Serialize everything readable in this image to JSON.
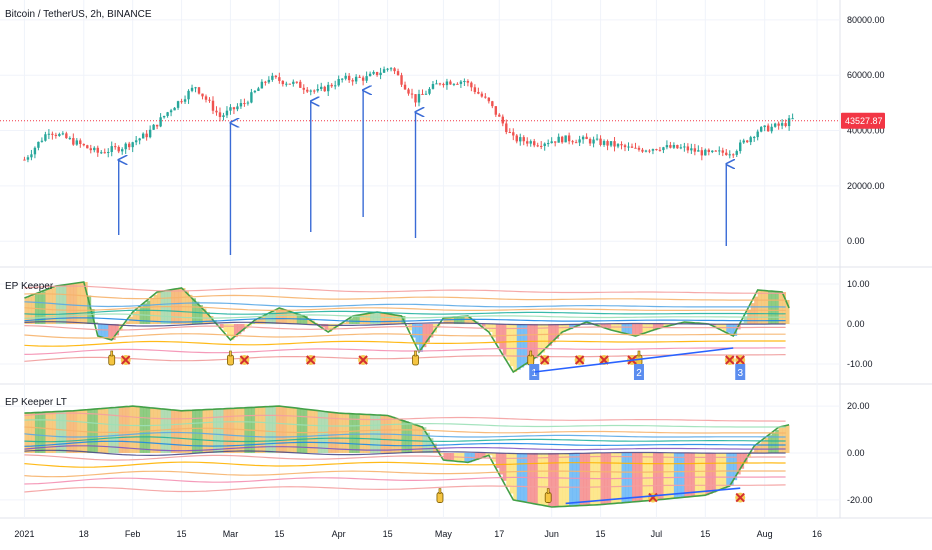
{
  "chart_data": [
    {
      "type": "candlestick",
      "title": "Bitcoin / TetherUS, 2h, BINANCE",
      "y_ticks": [
        "80000.00",
        "60000.00",
        "40000.00",
        "20000.00",
        "0.00"
      ],
      "y_tick_values": [
        80000,
        60000,
        40000,
        20000,
        0
      ],
      "ylim": [
        -7500,
        85000
      ],
      "last_price": 43527.87,
      "last_price_label": "43527.87",
      "price_colors": {
        "up": "#26a69a",
        "down": "#ef5350",
        "marker": "#f23645"
      },
      "series": [
        {
          "x": [
            "2021-01-01",
            "2021-01-08",
            "2021-01-15",
            "2021-01-22",
            "2021-01-29",
            "2021-02-05",
            "2021-02-12",
            "2021-02-19",
            "2021-02-26",
            "2021-03-05",
            "2021-03-12",
            "2021-03-19",
            "2021-03-26",
            "2021-04-02",
            "2021-04-09",
            "2021-04-16",
            "2021-04-23",
            "2021-04-30",
            "2021-05-07",
            "2021-05-14",
            "2021-05-21",
            "2021-05-28",
            "2021-06-04",
            "2021-06-11",
            "2021-06-18",
            "2021-06-25",
            "2021-07-02",
            "2021-07-09",
            "2021-07-16",
            "2021-07-23",
            "2021-07-30",
            "2021-08-06",
            "2021-08-09"
          ],
          "y": [
            29500,
            40000,
            36000,
            32000,
            34000,
            38500,
            48000,
            56000,
            45000,
            50000,
            59000,
            57000,
            54000,
            58500,
            59000,
            63000,
            51000,
            57500,
            58000,
            50000,
            37000,
            35500,
            37000,
            36500,
            35000,
            33000,
            34000,
            33500,
            31500,
            32500,
            40000,
            42000,
            44000
          ]
        }
      ],
      "annotations": {
        "arrow_dates": [
          "2021-01-28",
          "2021-03-01",
          "2021-03-24",
          "2021-04-08",
          "2021-04-23",
          "2021-07-21"
        ],
        "arrow_color": "#3a6bd6"
      }
    },
    {
      "type": "area",
      "title": "EP Keeper",
      "y_ticks": [
        "10.00",
        "0.00",
        "-10.00"
      ],
      "y_tick_values": [
        10,
        0,
        -10
      ],
      "ylim": [
        -14,
        13
      ],
      "series": [
        {
          "x": [
            "2021-01-01",
            "2021-01-10",
            "2021-01-18",
            "2021-01-22",
            "2021-01-26",
            "2021-02-01",
            "2021-02-08",
            "2021-02-15",
            "2021-02-22",
            "2021-03-01",
            "2021-03-08",
            "2021-03-15",
            "2021-03-22",
            "2021-03-29",
            "2021-04-05",
            "2021-04-12",
            "2021-04-19",
            "2021-04-24",
            "2021-05-01",
            "2021-05-08",
            "2021-05-14",
            "2021-05-21",
            "2021-05-28",
            "2021-06-04",
            "2021-06-11",
            "2021-06-18",
            "2021-06-25",
            "2021-07-02",
            "2021-07-09",
            "2021-07-16",
            "2021-07-23",
            "2021-07-30",
            "2021-08-06",
            "2021-08-08"
          ],
          "y": [
            6.5,
            9.5,
            10.5,
            -3,
            -4,
            3,
            8,
            9,
            3,
            -4,
            1,
            4,
            2,
            -2,
            2,
            3,
            2,
            -7,
            1.5,
            2,
            -2,
            -12,
            -8,
            -2,
            0.5,
            -1.5,
            -3,
            -1,
            0.5,
            0,
            -3,
            8.5,
            8,
            4
          ]
        }
      ],
      "band_levels": [
        9,
        7,
        5,
        4,
        3,
        2,
        1,
        0,
        -1,
        -3,
        -5,
        -7,
        -9
      ],
      "band_colors": [
        "#f4a0a0",
        "#f6b26b",
        "#5aa9e6",
        "#f6b26b",
        "#22b3a0",
        "#9be0b7",
        "#1e88e5",
        "#4d4d8a",
        "#ef9a9a",
        "#f6b26b",
        "#ffb300",
        "#f48fb1",
        "#ef9a9a"
      ],
      "markers": {
        "hand_dates": [
          "2021-01-26",
          "2021-03-01",
          "2021-04-23",
          "2021-05-26",
          "2021-06-26"
        ],
        "cross_dates": [
          "2021-01-30",
          "2021-03-05",
          "2021-03-24",
          "2021-04-08",
          "2021-05-30",
          "2021-06-09",
          "2021-06-16",
          "2021-07-22",
          "2021-07-25",
          "2021-06-24"
        ],
        "box_labels": [
          {
            "date": "2021-05-27",
            "text": "1"
          },
          {
            "date": "2021-06-26",
            "text": "2"
          },
          {
            "date": "2021-07-25",
            "text": "3"
          }
        ]
      }
    },
    {
      "type": "area",
      "title": "EP Keeper LT",
      "y_ticks": [
        "20.00",
        "0.00",
        "-20.00"
      ],
      "y_tick_values": [
        20,
        0,
        -20
      ],
      "ylim": [
        -26,
        26
      ],
      "series": [
        {
          "x": [
            "2021-01-01",
            "2021-01-15",
            "2021-02-01",
            "2021-02-15",
            "2021-03-01",
            "2021-03-15",
            "2021-04-01",
            "2021-04-15",
            "2021-04-25",
            "2021-05-01",
            "2021-05-08",
            "2021-05-14",
            "2021-05-21",
            "2021-06-01",
            "2021-06-15",
            "2021-07-01",
            "2021-07-15",
            "2021-07-22",
            "2021-07-29",
            "2021-08-05",
            "2021-08-08"
          ],
          "y": [
            17,
            18,
            20,
            18,
            19,
            20,
            17,
            16,
            11,
            -3,
            -4,
            -1,
            -20,
            -23,
            -22,
            -20,
            -18,
            -14,
            3,
            11,
            12
          ]
        }
      ],
      "band_levels": [
        16,
        13,
        10,
        8,
        6,
        4,
        2,
        0,
        -2,
        -5,
        -9,
        -12,
        -16
      ],
      "band_colors": [
        "#f4a0a0",
        "#9be0b7",
        "#f6b26b",
        "#5aa9e6",
        "#22b3a0",
        "#1e88e5",
        "#7e57c2",
        "#4d4d8a",
        "#ef9a9a",
        "#ffb300",
        "#f6b26b",
        "#f48fb1",
        "#f4a0a0"
      ],
      "markers": {
        "hand_dates": [
          "2021-04-30",
          "2021-05-31"
        ],
        "cross_dates": [
          "2021-06-30",
          "2021-07-25"
        ]
      }
    }
  ],
  "x_axis": {
    "ticks": [
      {
        "date": "2021-01-01",
        "label": "2021"
      },
      {
        "date": "2021-01-18",
        "label": "18"
      },
      {
        "date": "2021-02-01",
        "label": "Feb"
      },
      {
        "date": "2021-02-15",
        "label": "15"
      },
      {
        "date": "2021-03-01",
        "label": "Mar"
      },
      {
        "date": "2021-03-15",
        "label": "15"
      },
      {
        "date": "2021-04-01",
        "label": "Apr"
      },
      {
        "date": "2021-04-15",
        "label": "15"
      },
      {
        "date": "2021-05-01",
        "label": "May"
      },
      {
        "date": "2021-05-17",
        "label": "17"
      },
      {
        "date": "2021-06-01",
        "label": "Jun"
      },
      {
        "date": "2021-06-15",
        "label": "15"
      },
      {
        "date": "2021-07-01",
        "label": "Jul"
      },
      {
        "date": "2021-07-15",
        "label": "15"
      },
      {
        "date": "2021-08-01",
        "label": "Aug"
      },
      {
        "date": "2021-08-16",
        "label": "16"
      }
    ],
    "range": [
      "2020-12-25",
      "2021-08-22"
    ]
  },
  "colors": {
    "text": "#131722",
    "separator": "#e0e3eb",
    "positive_fill": "#f6c26b",
    "positive_fill_alt": "#7cc36d",
    "negative_fill": "#f48a8a",
    "outline": "#43a047",
    "trendline": "#2962ff"
  }
}
